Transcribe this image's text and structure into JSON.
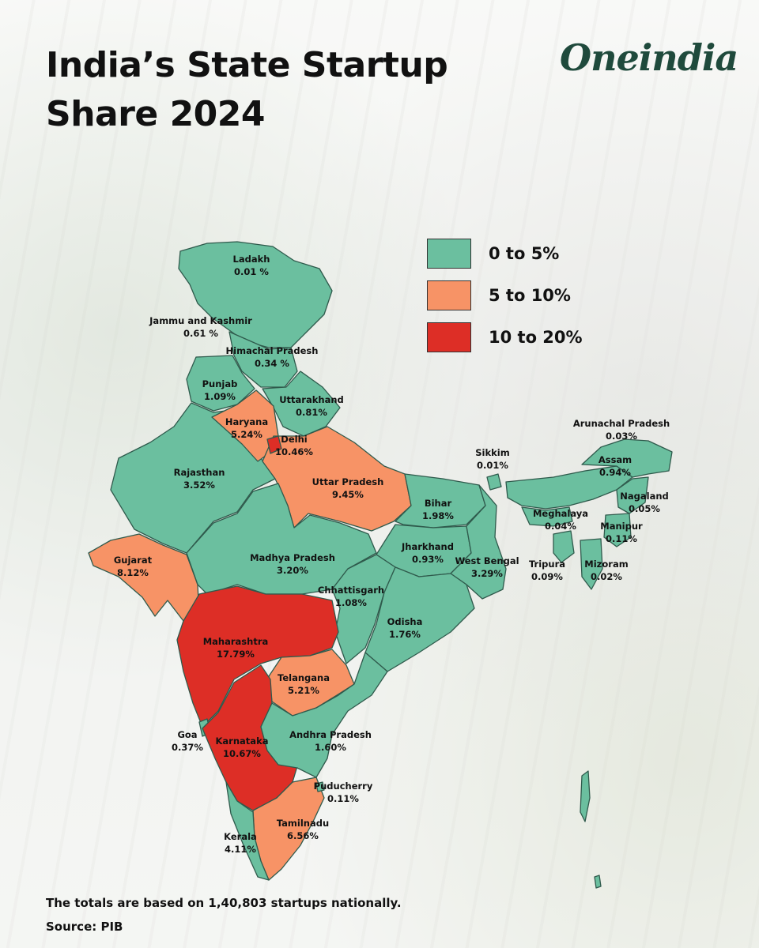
{
  "title": "India’s State Startup Share 2024",
  "logo": "Oneindia",
  "colors": {
    "low": "#6bbf9f",
    "mid": "#f79366",
    "high": "#dd2e26"
  },
  "legend": [
    {
      "label": "0 to 5%",
      "band": "low"
    },
    {
      "label": "5 to 10%",
      "band": "mid"
    },
    {
      "label": "10 to 20%",
      "band": "high"
    }
  ],
  "states": [
    {
      "name": "Ladakh",
      "share": "0.01 %",
      "band": "low"
    },
    {
      "name": "Jammu and Kashmir",
      "share": "0.61 %",
      "band": "low"
    },
    {
      "name": "Himachal Pradesh",
      "share": "0.34 %",
      "band": "low"
    },
    {
      "name": "Punjab",
      "share": "1.09%",
      "band": "low"
    },
    {
      "name": "Uttarakhand",
      "share": "0.81%",
      "band": "low"
    },
    {
      "name": "Haryana",
      "share": "5.24%",
      "band": "mid"
    },
    {
      "name": "Delhi",
      "share": "10.46%",
      "band": "high"
    },
    {
      "name": "Rajasthan",
      "share": "3.52%",
      "band": "low"
    },
    {
      "name": "Uttar Pradesh",
      "share": "9.45%",
      "band": "mid"
    },
    {
      "name": "Bihar",
      "share": "1.98%",
      "band": "low"
    },
    {
      "name": "Gujarat",
      "share": "8.12%",
      "band": "mid"
    },
    {
      "name": "Madhya Pradesh",
      "share": "3.20%",
      "band": "low"
    },
    {
      "name": "Jharkhand",
      "share": "0.93%",
      "band": "low"
    },
    {
      "name": "West Bengal",
      "share": "3.29%",
      "band": "low"
    },
    {
      "name": "Chhattisgarh",
      "share": "1.08%",
      "band": "low"
    },
    {
      "name": "Odisha",
      "share": "1.76%",
      "band": "low"
    },
    {
      "name": "Maharashtra",
      "share": "17.79%",
      "band": "high"
    },
    {
      "name": "Telangana",
      "share": "5.21%",
      "band": "mid"
    },
    {
      "name": "Goa",
      "share": "0.37%",
      "band": "low"
    },
    {
      "name": "Karnataka",
      "share": "10.67%",
      "band": "high"
    },
    {
      "name": "Andhra Pradesh",
      "share": "1.60%",
      "band": "low"
    },
    {
      "name": "Puducherry",
      "share": "0.11%",
      "band": "low"
    },
    {
      "name": "Tamilnadu",
      "share": "6.56%",
      "band": "mid"
    },
    {
      "name": "Kerala",
      "share": "4.11%",
      "band": "low"
    },
    {
      "name": "Sikkim",
      "share": "0.01%",
      "band": "low"
    },
    {
      "name": "Arunachal Pradesh",
      "share": "0.03%",
      "band": "low"
    },
    {
      "name": "Assam",
      "share": "0.94%",
      "band": "low"
    },
    {
      "name": "Nagaland",
      "share": "0.05%",
      "band": "low"
    },
    {
      "name": "Meghalaya",
      "share": "0.04%",
      "band": "low"
    },
    {
      "name": "Manipur",
      "share": "0.11%",
      "band": "low"
    },
    {
      "name": "Tripura",
      "share": "0.09%",
      "band": "low"
    },
    {
      "name": "Mizoram",
      "share": "0.02%",
      "band": "low"
    }
  ],
  "footnote": "The totals are based on 1,40,803 startups nationally.",
  "source": "Source: PIB"
}
